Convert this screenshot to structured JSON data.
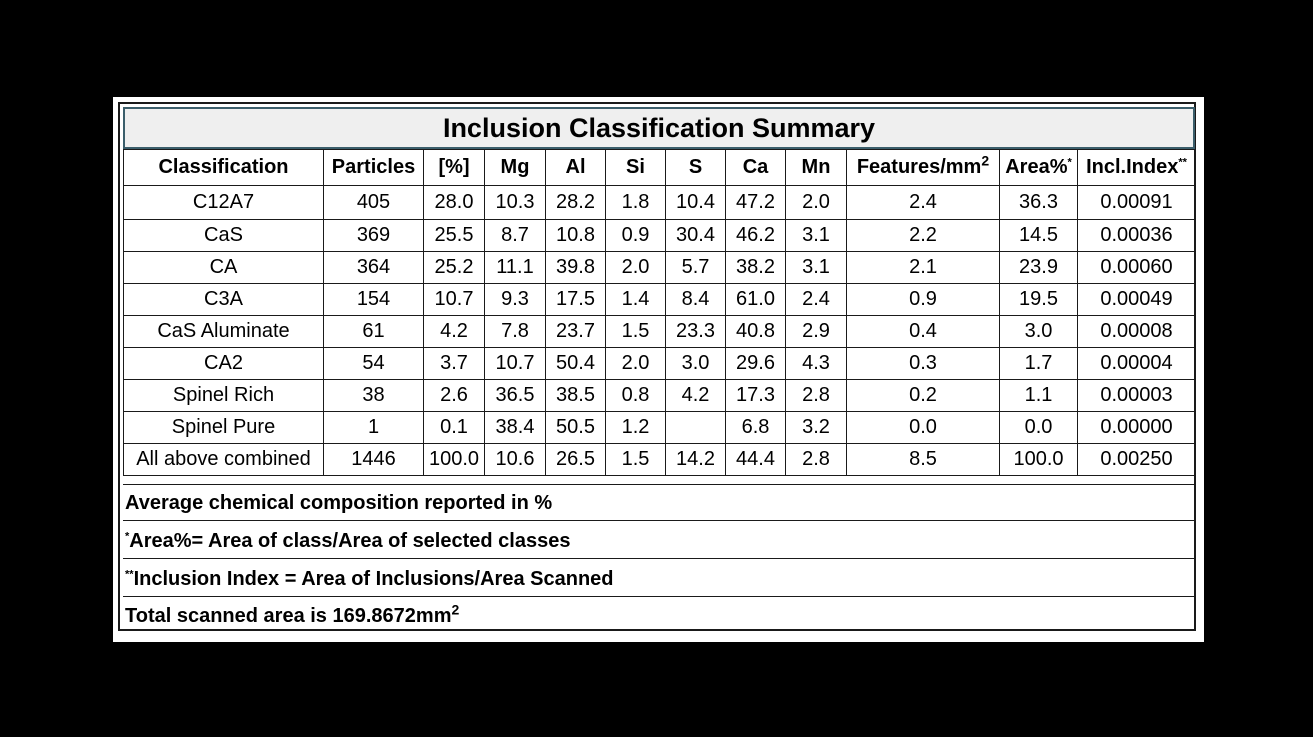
{
  "title": "Inclusion Classification Summary",
  "columns": [
    "Classification",
    "Particles",
    "[%]",
    "Mg",
    "Al",
    "Si",
    "S",
    "Ca",
    "Mn",
    "Features/mm",
    "Area%",
    "Incl.Index"
  ],
  "header_superscripts": {
    "features_unit": "2",
    "area_note": "*",
    "index_note": "**"
  },
  "rows": [
    [
      "C12A7",
      "405",
      "28.0",
      "10.3",
      "28.2",
      "1.8",
      "10.4",
      "47.2",
      "2.0",
      "2.4",
      "36.3",
      "0.00091"
    ],
    [
      "CaS",
      "369",
      "25.5",
      "8.7",
      "10.8",
      "0.9",
      "30.4",
      "46.2",
      "3.1",
      "2.2",
      "14.5",
      "0.00036"
    ],
    [
      "CA",
      "364",
      "25.2",
      "11.1",
      "39.8",
      "2.0",
      "5.7",
      "38.2",
      "3.1",
      "2.1",
      "23.9",
      "0.00060"
    ],
    [
      "C3A",
      "154",
      "10.7",
      "9.3",
      "17.5",
      "1.4",
      "8.4",
      "61.0",
      "2.4",
      "0.9",
      "19.5",
      "0.00049"
    ],
    [
      "CaS Aluminate",
      "61",
      "4.2",
      "7.8",
      "23.7",
      "1.5",
      "23.3",
      "40.8",
      "2.9",
      "0.4",
      "3.0",
      "0.00008"
    ],
    [
      "CA2",
      "54",
      "3.7",
      "10.7",
      "50.4",
      "2.0",
      "3.0",
      "29.6",
      "4.3",
      "0.3",
      "1.7",
      "0.00004"
    ],
    [
      "Spinel Rich",
      "38",
      "2.6",
      "36.5",
      "38.5",
      "0.8",
      "4.2",
      "17.3",
      "2.8",
      "0.2",
      "1.1",
      "0.00003"
    ],
    [
      "Spinel Pure",
      "1",
      "0.1",
      "38.4",
      "50.5",
      "1.2",
      "",
      "6.8",
      "3.2",
      "0.0",
      "0.0",
      "0.00000"
    ],
    [
      "All above combined",
      "1446",
      "100.0",
      "10.6",
      "26.5",
      "1.5",
      "14.2",
      "44.4",
      "2.8",
      "8.5",
      "100.0",
      "0.00250"
    ]
  ],
  "footnotes": {
    "composition": "Average chemical composition reported in %",
    "area_mark": "*",
    "area_def": "Area%= Area of class/Area of selected classes",
    "index_mark": "**",
    "index_def": "Inclusion Index = Area of Inclusions/Area Scanned",
    "total_area": "Total scanned area is 169.8672mm",
    "total_area_unit": "2"
  },
  "colors": {
    "background": "#000000",
    "sheet": "#ffffff",
    "title_band": "#efefef",
    "title_border": "#3b5e6b"
  }
}
